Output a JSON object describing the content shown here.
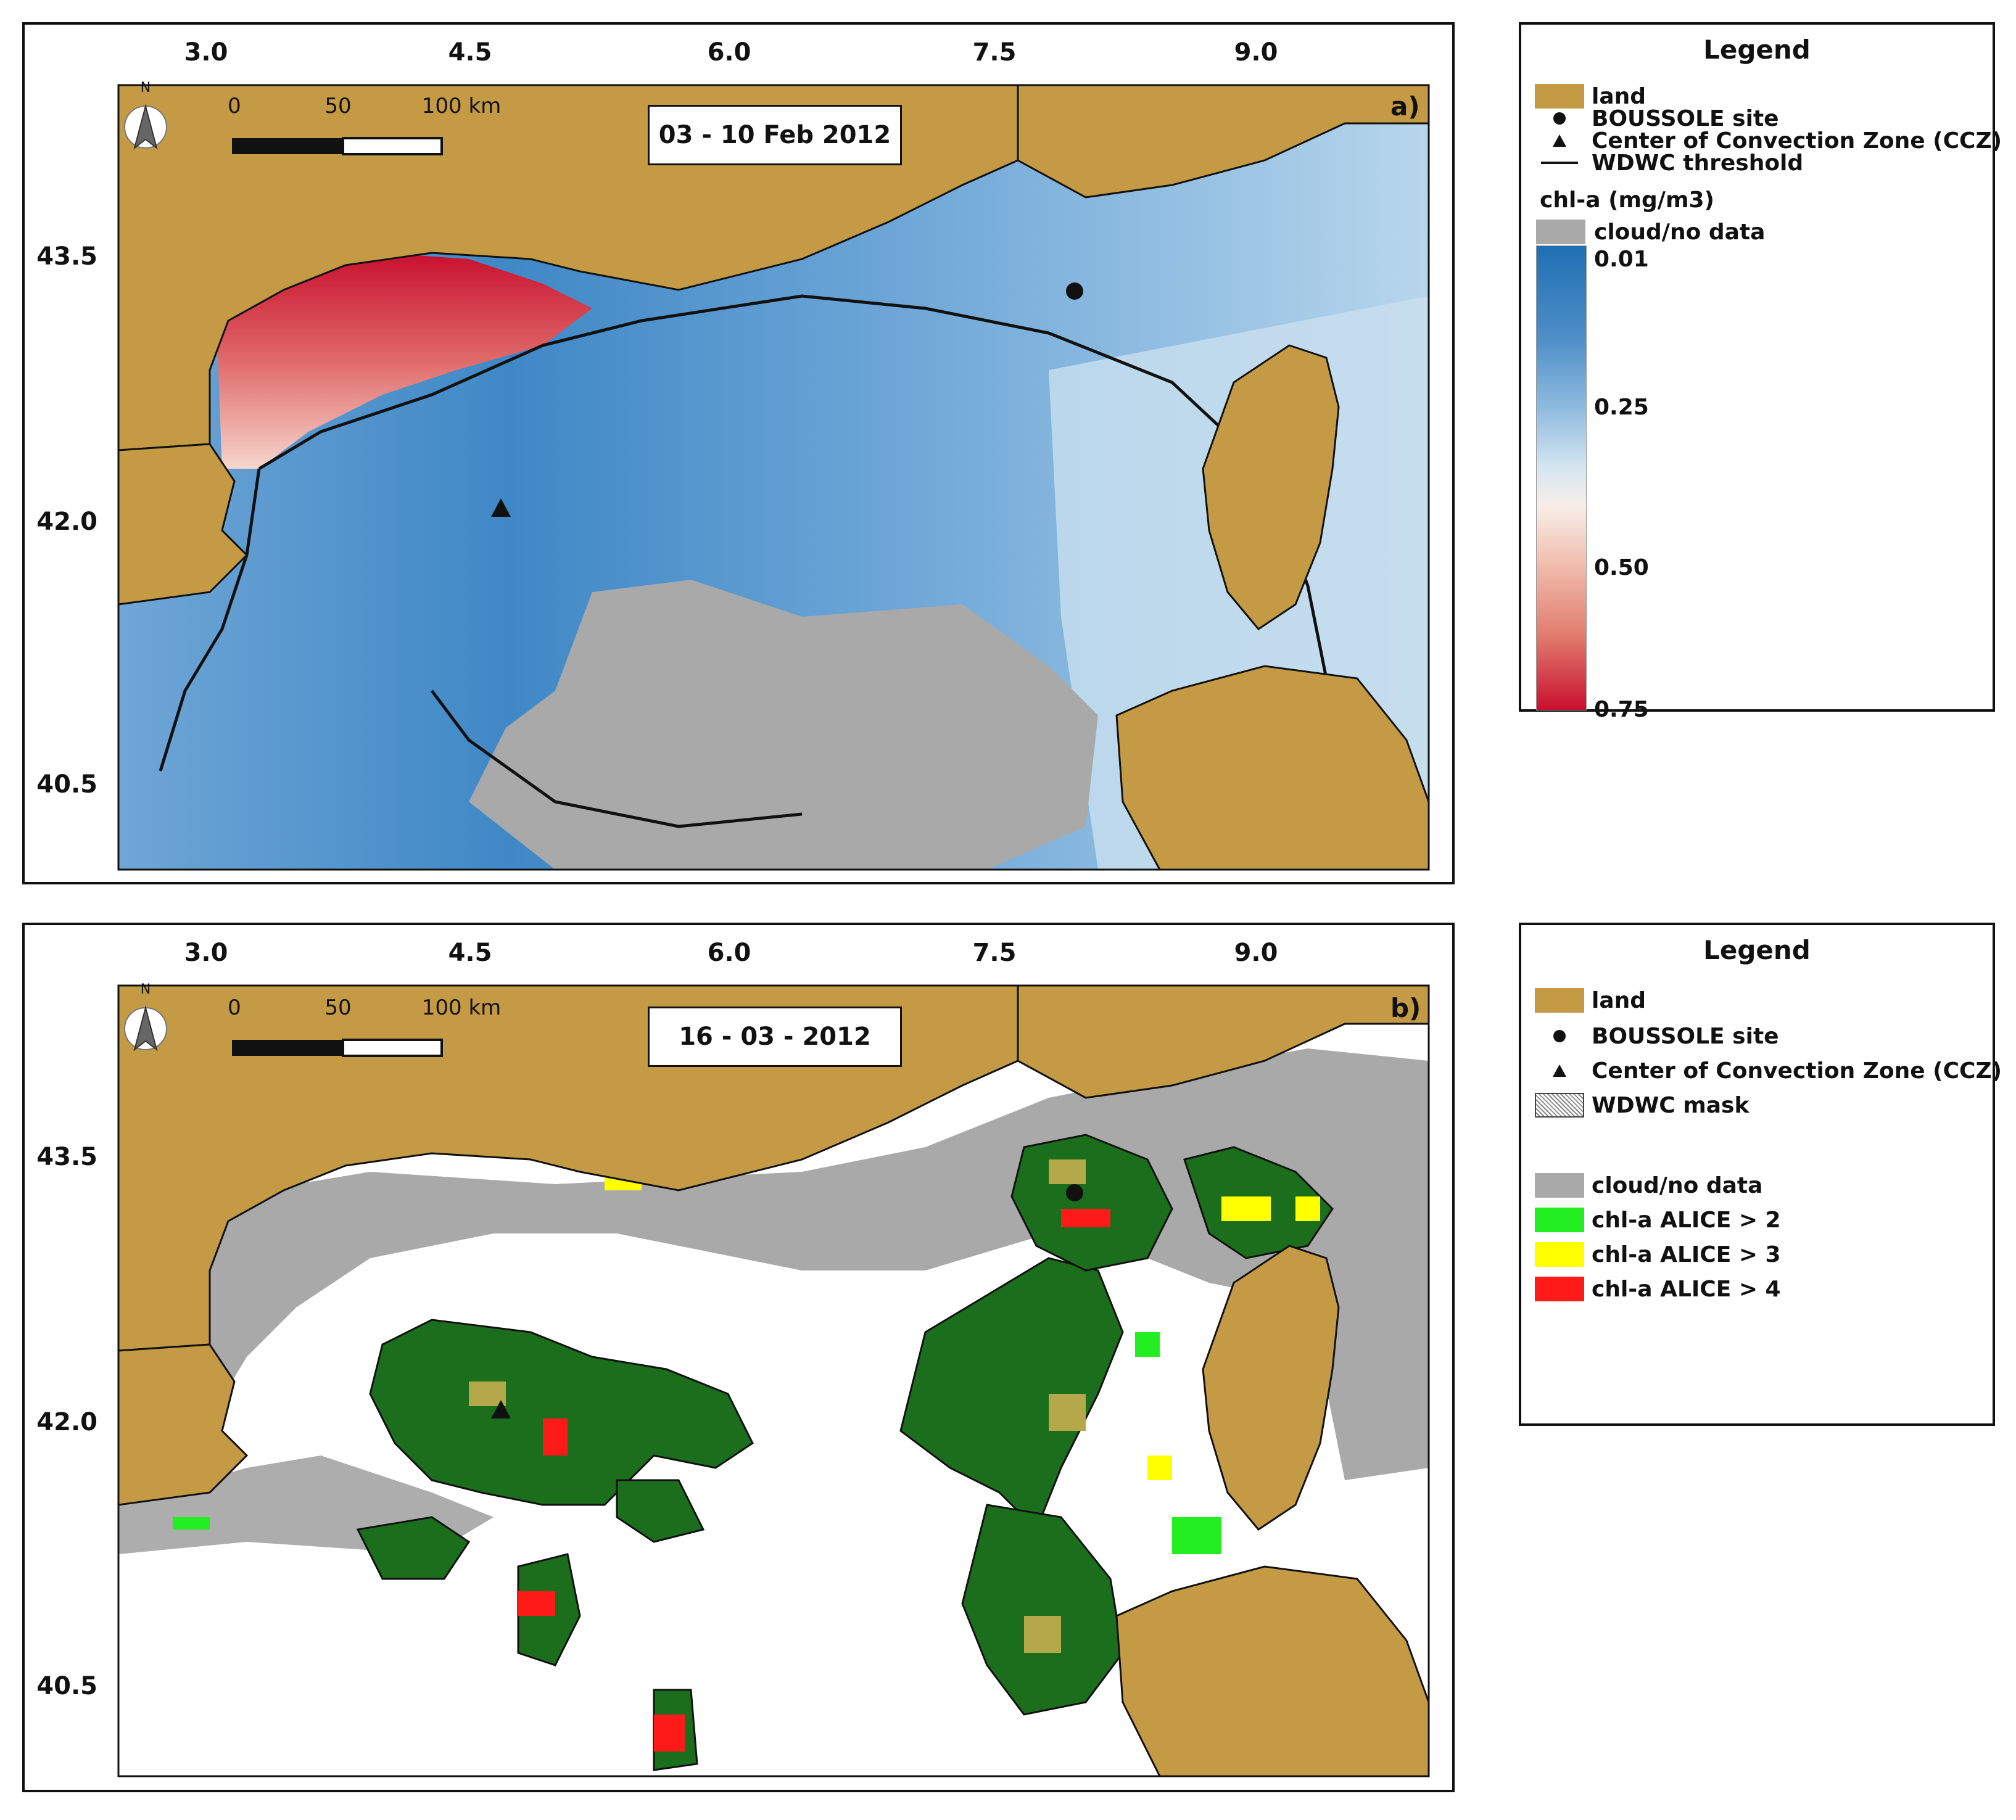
{
  "colors": {
    "land": "#c49a45",
    "cloud": "#a9a9a9",
    "water_b": "#ffffff",
    "blue_dark": "#2a75b6",
    "blue_mid": "#5b9bd2",
    "blue_light": "#a9cde7",
    "pale": "#eef3f7",
    "red_light": "#f2b7a8",
    "red_dark": "#c8102e",
    "green": "#22ee22",
    "yellow": "#ffff00",
    "red": "#ff1a1a",
    "green_dark": "#1b6e1b",
    "olive": "#b4a84a"
  },
  "axes": {
    "lon_ticks": [
      "3.0",
      "4.5",
      "6.0",
      "7.5",
      "9.0"
    ],
    "lat_ticks": [
      "43.5",
      "42.0",
      "40.5"
    ],
    "lon_range": [
      2.5,
      10.0
    ],
    "lat_range": [
      40.0,
      44.0
    ]
  },
  "scale_bar": {
    "labels": [
      "0",
      "50",
      "100 km"
    ],
    "north_label": "N"
  },
  "panel_a": {
    "letter": "a)",
    "date": "03 - 10 Feb 2012",
    "legend": {
      "title": "Legend",
      "items": [
        {
          "label": "land",
          "symbol": "land-swatch"
        },
        {
          "label": "BOUSSOLE site",
          "symbol": "circle-marker"
        },
        {
          "label": "Center of Convection Zone (CCZ)",
          "symbol": "triangle-marker"
        },
        {
          "label": "WDWC threshold",
          "symbol": "line"
        }
      ],
      "colorbar_title": "chl-a (mg/m3)",
      "cloud_label": "cloud/no data",
      "colorbar_ticks": [
        "0.01",
        "0.25",
        "0.50",
        "0.75"
      ]
    }
  },
  "panel_b": {
    "letter": "b)",
    "date": "16 - 03 - 2012",
    "legend": {
      "title": "Legend",
      "items": [
        {
          "label": "land",
          "symbol": "land-swatch"
        },
        {
          "label": "BOUSSOLE site",
          "symbol": "circle-marker"
        },
        {
          "label": "Center of Convection Zone (CCZ)",
          "symbol": "triangle-marker"
        },
        {
          "label": "WDWC mask",
          "symbol": "hatch-swatch"
        }
      ],
      "classes": [
        {
          "label": "cloud/no data",
          "color": "#a9a9a9"
        },
        {
          "label": "chl-a ALICE > 2",
          "color": "#22ee22"
        },
        {
          "label": "chl-a ALICE > 3",
          "color": "#ffff00"
        },
        {
          "label": "chl-a ALICE > 4",
          "color": "#ff1a1a"
        }
      ]
    }
  },
  "markers": {
    "boussole": {
      "lon": 7.9,
      "lat": 43.37
    },
    "ccz": {
      "lon": 4.7,
      "lat": 42.1
    }
  }
}
